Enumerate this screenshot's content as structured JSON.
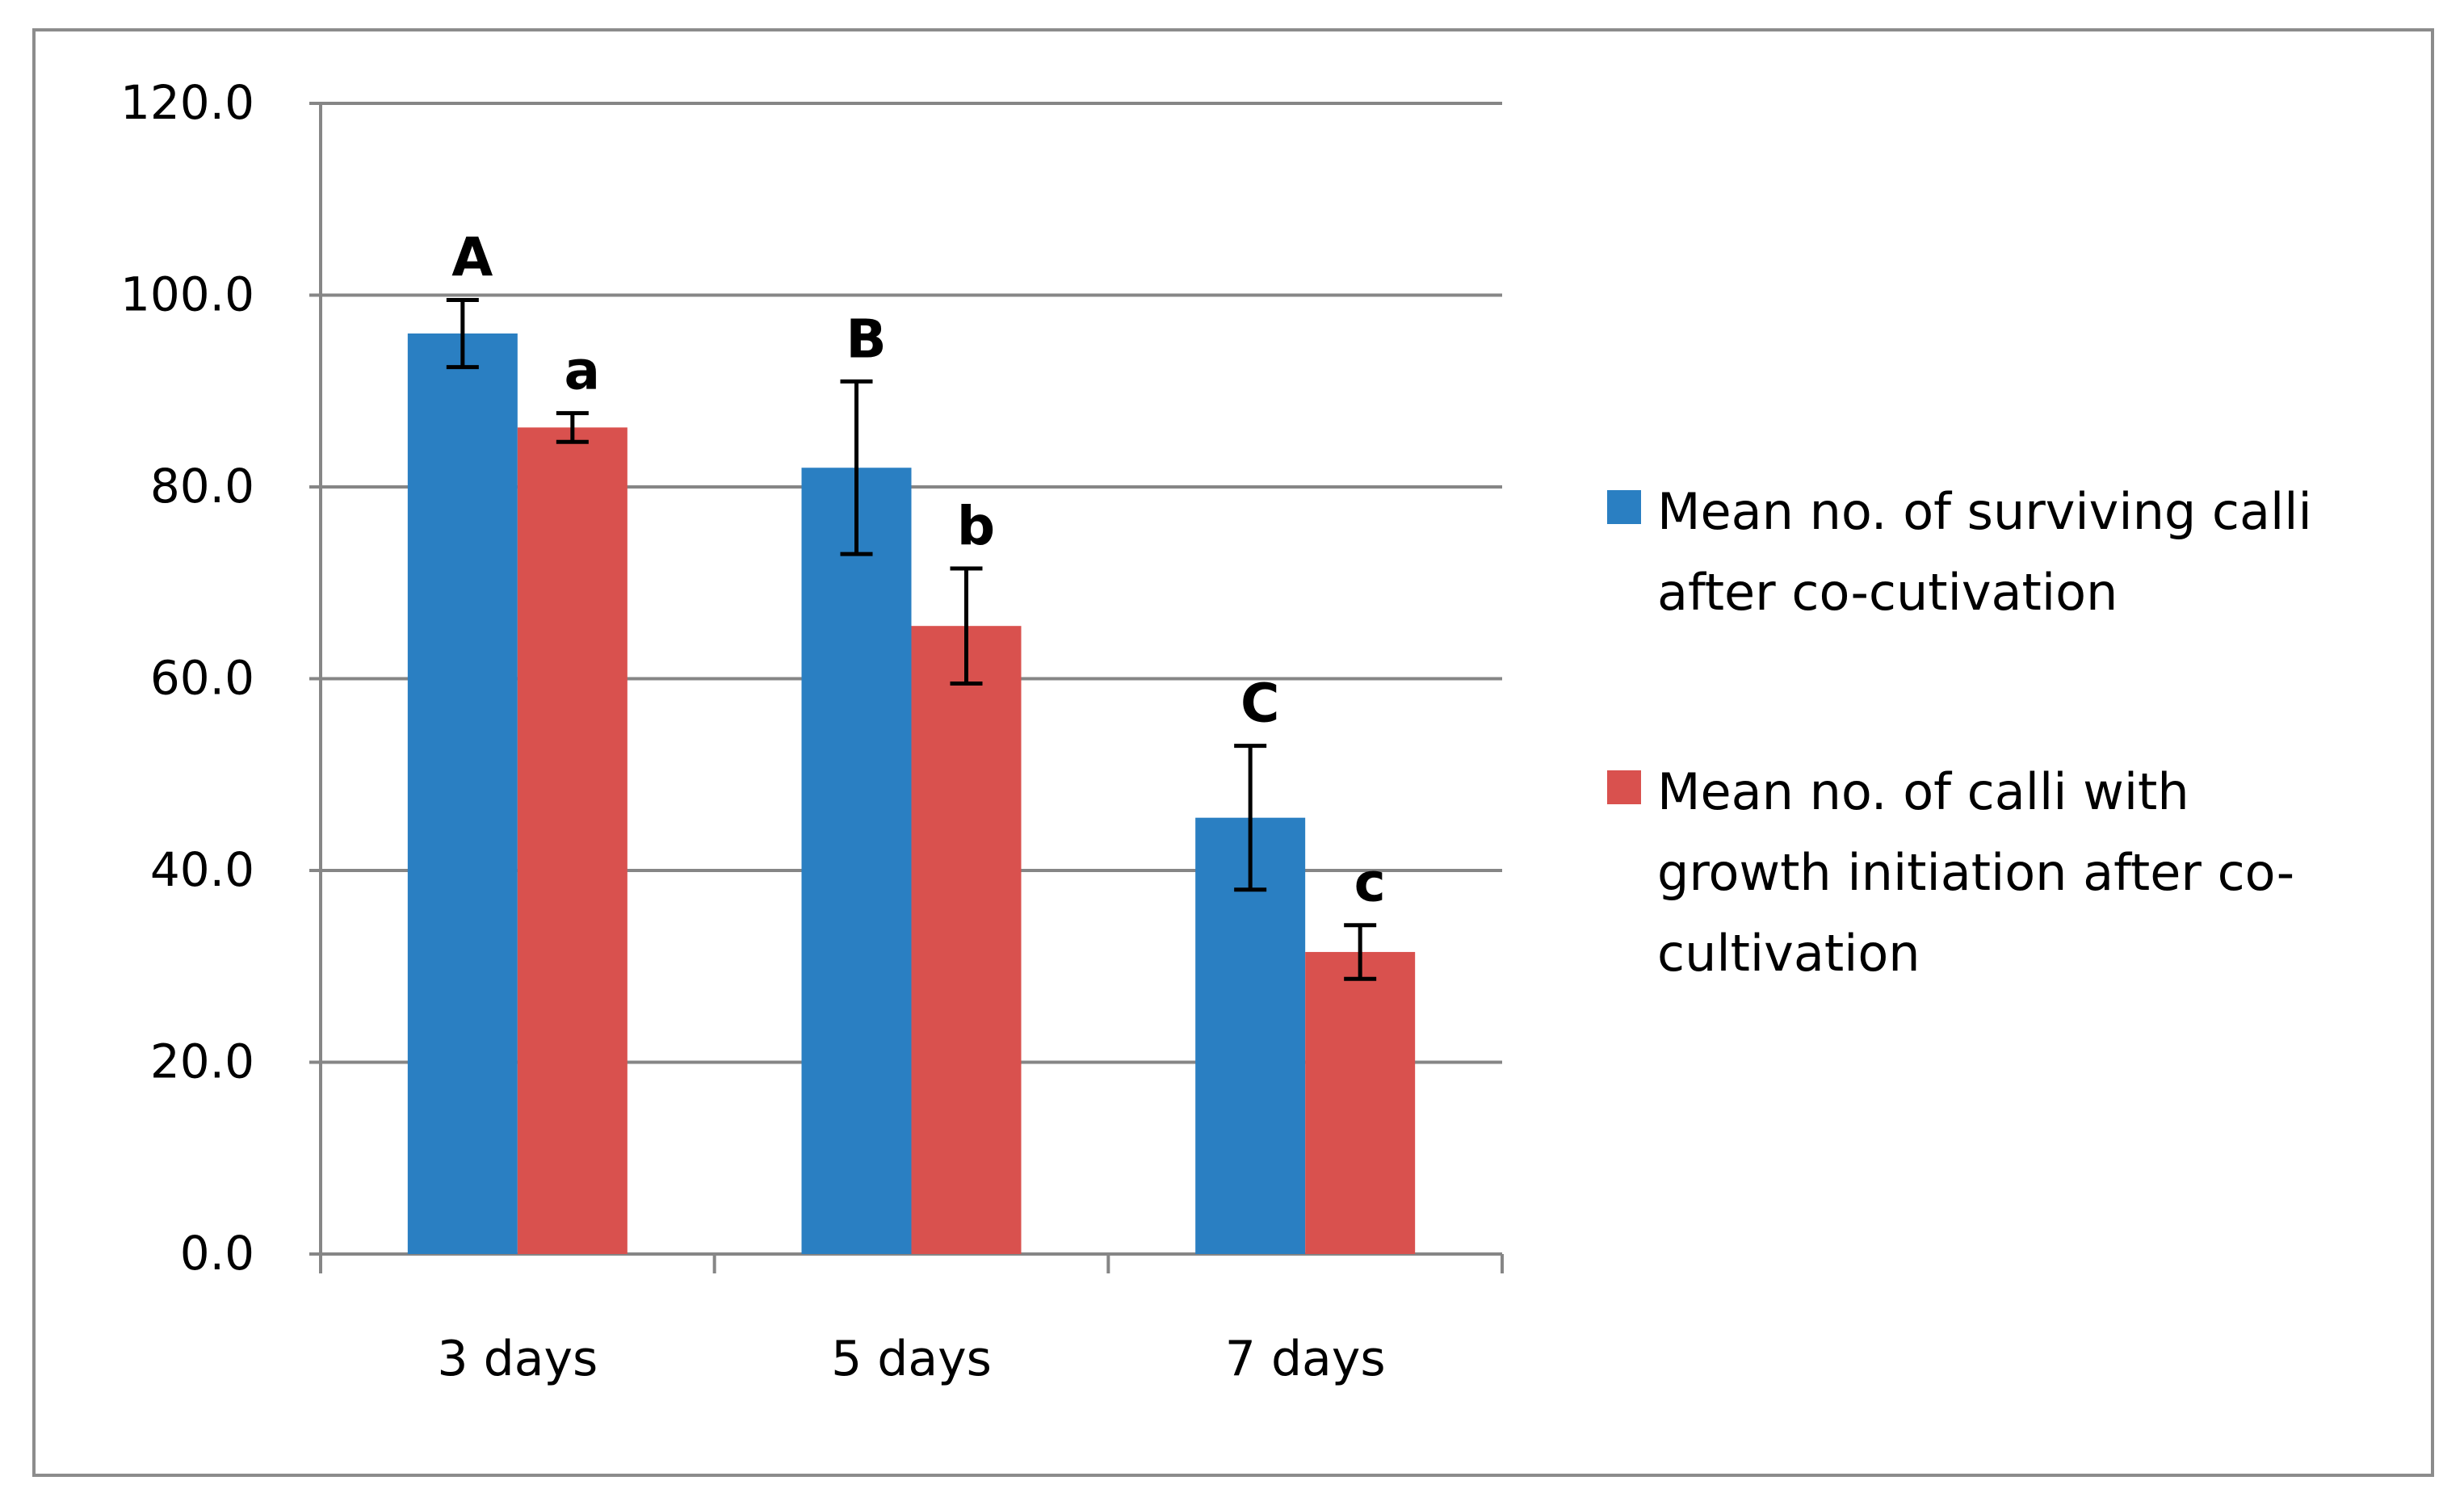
{
  "chart_data": {
    "type": "bar",
    "categories": [
      "3 days",
      "5 days",
      "7 days"
    ],
    "ylim": [
      0,
      120
    ],
    "yticks": [
      "0.0",
      "20.0",
      "40.0",
      "60.0",
      "80.0",
      "100.0",
      "120.0"
    ],
    "grid": true,
    "legend_position": "right",
    "title": "",
    "xlabel": "",
    "ylabel": "",
    "series": [
      {
        "name": "Mean no. of surviving calli after co-cutivation",
        "legend_lines": [
          "Mean no. of surviving calli",
          "after co-cutivation"
        ],
        "color": "#2a7fc2",
        "values": [
          96.0,
          82.0,
          45.5
        ],
        "errors": [
          3.5,
          9.0,
          7.5
        ],
        "letters": [
          "A",
          "B",
          "C"
        ]
      },
      {
        "name": "Mean no. of calli with growth initiation  after co-cultivation",
        "legend_lines": [
          "Mean no. of calli with",
          "growth initiation  after co-",
          "cultivation"
        ],
        "color": "#d9514e",
        "values": [
          86.2,
          65.5,
          31.5
        ],
        "errors": [
          1.5,
          6.0,
          2.8
        ],
        "letters": [
          "a",
          "b",
          "c"
        ]
      }
    ],
    "colors": {
      "axis": "#868686",
      "grid": "#868686",
      "frame": "#8c8c8c",
      "text": "#000000",
      "error_bar": "#000000"
    }
  }
}
